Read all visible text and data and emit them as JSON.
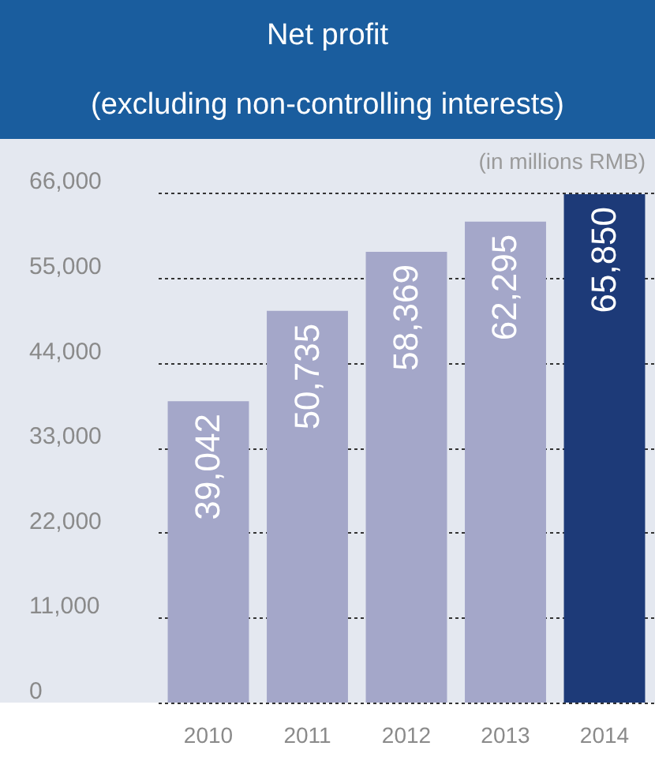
{
  "chart_data": {
    "type": "bar",
    "title": "Net profit",
    "subtitle": "(excluding non-controlling interests)",
    "annotations": [
      "(in millions RMB)"
    ],
    "categories": [
      "2010",
      "2011",
      "2012",
      "2013",
      "2014"
    ],
    "values": [
      39042,
      50735,
      58369,
      62295,
      65850
    ],
    "value_labels": [
      "39,042",
      "50,735",
      "58,369",
      "62,295",
      "65,850"
    ],
    "colors": [
      "#a4a7c9",
      "#a4a7c9",
      "#a4a7c9",
      "#a4a7c9",
      "#1d3a78"
    ],
    "ylim": [
      0,
      73000
    ],
    "yticks": [
      0,
      {
        "value": 11000,
        "label": "11,000"
      },
      {
        "value": 22000,
        "label": "22,000"
      },
      {
        "value": 33000,
        "label": "33,000"
      },
      {
        "value": 44000,
        "label": "44,000"
      },
      {
        "value": 55000,
        "label": "55,000"
      },
      {
        "value": 66000,
        "label": "66,000"
      }
    ],
    "grid": "y"
  }
}
